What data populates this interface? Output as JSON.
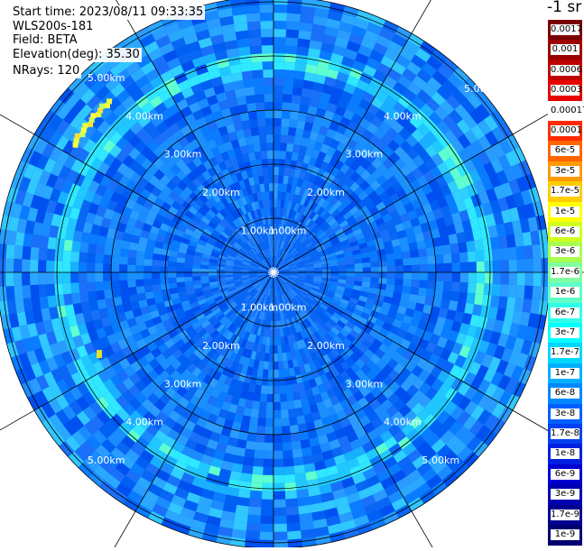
{
  "info": {
    "start_time": "Start time: 2023/08/11 09:33:35",
    "instrument": "WLS200s-181",
    "field": "Field: BETA",
    "elevation": "Elevation(deg): 35.30",
    "nrays": "NRays: 120"
  },
  "colorbar": {
    "title": "-1 sr",
    "labels": [
      "0.0017",
      "0.001",
      "0.0006",
      "0.0003",
      "0.00017",
      "0.0001",
      "6e-5",
      "3e-5",
      "1.7e-5",
      "1e-5",
      "6e-6",
      "3e-6",
      "1.7e-6",
      "1e-6",
      "6e-7",
      "3e-7",
      "1.7e-7",
      "1e-7",
      "6e-8",
      "3e-8",
      "1.7e-8",
      "1e-8",
      "6e-9",
      "3e-9",
      "1.7e-9",
      "1e-9"
    ],
    "colors": [
      "#7a0000",
      "#9c0000",
      "#c00000",
      "#e80000",
      "#ffffff",
      "#ff2a00",
      "#ff6400",
      "#ff9a00",
      "#ffcc00",
      "#ffff00",
      "#d0ff20",
      "#a8ff50",
      "#80ffa0",
      "#60ffc8",
      "#30ffe8",
      "#00ffff",
      "#00d8ff",
      "#00b0ff",
      "#0088ff",
      "#0060ff",
      "#0040f0",
      "#0020e0",
      "#0000d0",
      "#0000b0",
      "#000090",
      "#000070"
    ]
  },
  "chart_data": {
    "type": "heatmap",
    "projection": "polar (PPI scan)",
    "range_rings_km": [
      1,
      2,
      3,
      4,
      5
    ],
    "range_ring_labels": [
      "1.00km",
      "2.00km",
      "3.00km",
      "4.00km",
      "5.00km"
    ],
    "max_range_km": 5.1,
    "radial_spokes_deg": [
      0,
      30,
      60,
      90,
      120,
      150,
      180,
      210,
      240,
      270,
      300,
      330
    ],
    "value_field": "BETA",
    "scale": "log",
    "features": [
      {
        "description_value": "background attenuated backscatter approx 1e-8 .. 6e-8"
      },
      {
        "ring_km": 3.9,
        "value": 1.7e-07
      },
      {
        "hotspot_range_km": 4.4,
        "hotspot_azimuth_deg": 310,
        "value": 1e-05
      }
    ]
  }
}
